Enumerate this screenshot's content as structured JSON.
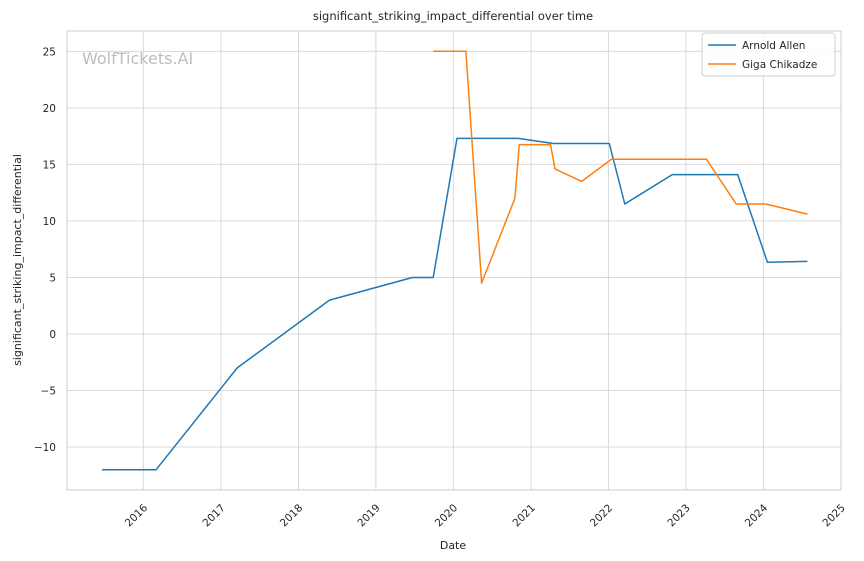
{
  "watermark": "WolfTickets.AI",
  "chart_data": {
    "type": "line",
    "title": "significant_striking_impact_differential over time",
    "xlabel": "Date",
    "ylabel": "significant_striking_impact_differential",
    "xlim": [
      "2015-01-06",
      "2025-01-01"
    ],
    "ylim": [
      -13.8,
      26.8
    ],
    "x_ticks": [
      "2016",
      "2017",
      "2018",
      "2019",
      "2020",
      "2021",
      "2022",
      "2023",
      "2024",
      "2025"
    ],
    "y_ticks": [
      -10,
      -5,
      0,
      5,
      10,
      15,
      20,
      25
    ],
    "grid": true,
    "legend_position": "top-right",
    "series": [
      {
        "name": "Arnold Allen",
        "color": "#1f77b4",
        "points": [
          [
            "2015-06-20",
            -12.0
          ],
          [
            "2016-03-01",
            -12.0
          ],
          [
            "2017-03-18",
            -3.0
          ],
          [
            "2018-05-27",
            3.0
          ],
          [
            "2019-06-22",
            5.0
          ],
          [
            "2019-09-28",
            5.0
          ],
          [
            "2020-01-18",
            17.3
          ],
          [
            "2020-11-01",
            17.3
          ],
          [
            "2021-04-17",
            16.85
          ],
          [
            "2022-01-05",
            16.85
          ],
          [
            "2022-03-19",
            11.5
          ],
          [
            "2022-10-29",
            14.1
          ],
          [
            "2023-09-02",
            14.1
          ],
          [
            "2024-01-20",
            6.35
          ],
          [
            "2024-07-27",
            6.42
          ]
        ]
      },
      {
        "name": "Giga Chikadze",
        "color": "#ff7f0e",
        "points": [
          [
            "2019-09-28",
            25.0
          ],
          [
            "2020-02-29",
            25.0
          ],
          [
            "2020-05-13",
            4.5
          ],
          [
            "2020-10-17",
            12.0
          ],
          [
            "2020-11-07",
            16.75
          ],
          [
            "2021-04-03",
            16.75
          ],
          [
            "2021-04-24",
            14.6
          ],
          [
            "2021-08-28",
            13.5
          ],
          [
            "2022-01-15",
            15.45
          ],
          [
            "2023-04-08",
            15.45
          ],
          [
            "2023-08-26",
            11.5
          ],
          [
            "2024-01-13",
            11.5
          ],
          [
            "2024-07-27",
            10.6
          ]
        ]
      }
    ]
  }
}
